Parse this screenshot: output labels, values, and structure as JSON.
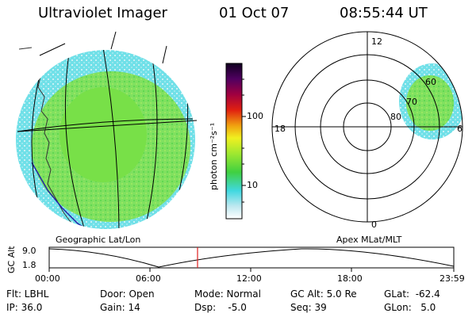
{
  "header": {
    "title": "Ultraviolet Imager",
    "date": "01 Oct 07",
    "time": "08:55:44 UT"
  },
  "colorbar": {
    "unit_label": "photon cm⁻²s⁻¹",
    "tick_labels": [
      "100",
      "10"
    ]
  },
  "polar": {
    "mlt_labels": [
      "12",
      "18",
      "6",
      "0"
    ],
    "mlat_labels": [
      "60",
      "70",
      "80"
    ]
  },
  "map_labels": {
    "left": "Geographic Lat/Lon",
    "right": "Apex MLat/MLT"
  },
  "altitude_plot": {
    "axis_label": "GC Alt",
    "y_ticks": [
      "9.0",
      "1.8"
    ],
    "x_ticks": [
      "00:00",
      "06:00",
      "12:00",
      "18:00",
      "23:59"
    ]
  },
  "info": {
    "filter": "Flt: LBHL",
    "ip": "IP: 36.0",
    "door": "Door: Open",
    "gain": "Gain: 14",
    "mode": "Mode: Normal",
    "dsp": "Dsp:    -5.0",
    "gc_alt": "GC Alt: 5.0 Re",
    "seq": "Seq: 39",
    "glat": "GLat:  -62.4",
    "glon": "GLon:   5.0"
  },
  "colors": {
    "cyan": "#6fe0e8",
    "light_cyan": "#c8f0f4",
    "green": "#7ce84a",
    "dark_green": "#3fcf38",
    "marker": "#e02020"
  }
}
